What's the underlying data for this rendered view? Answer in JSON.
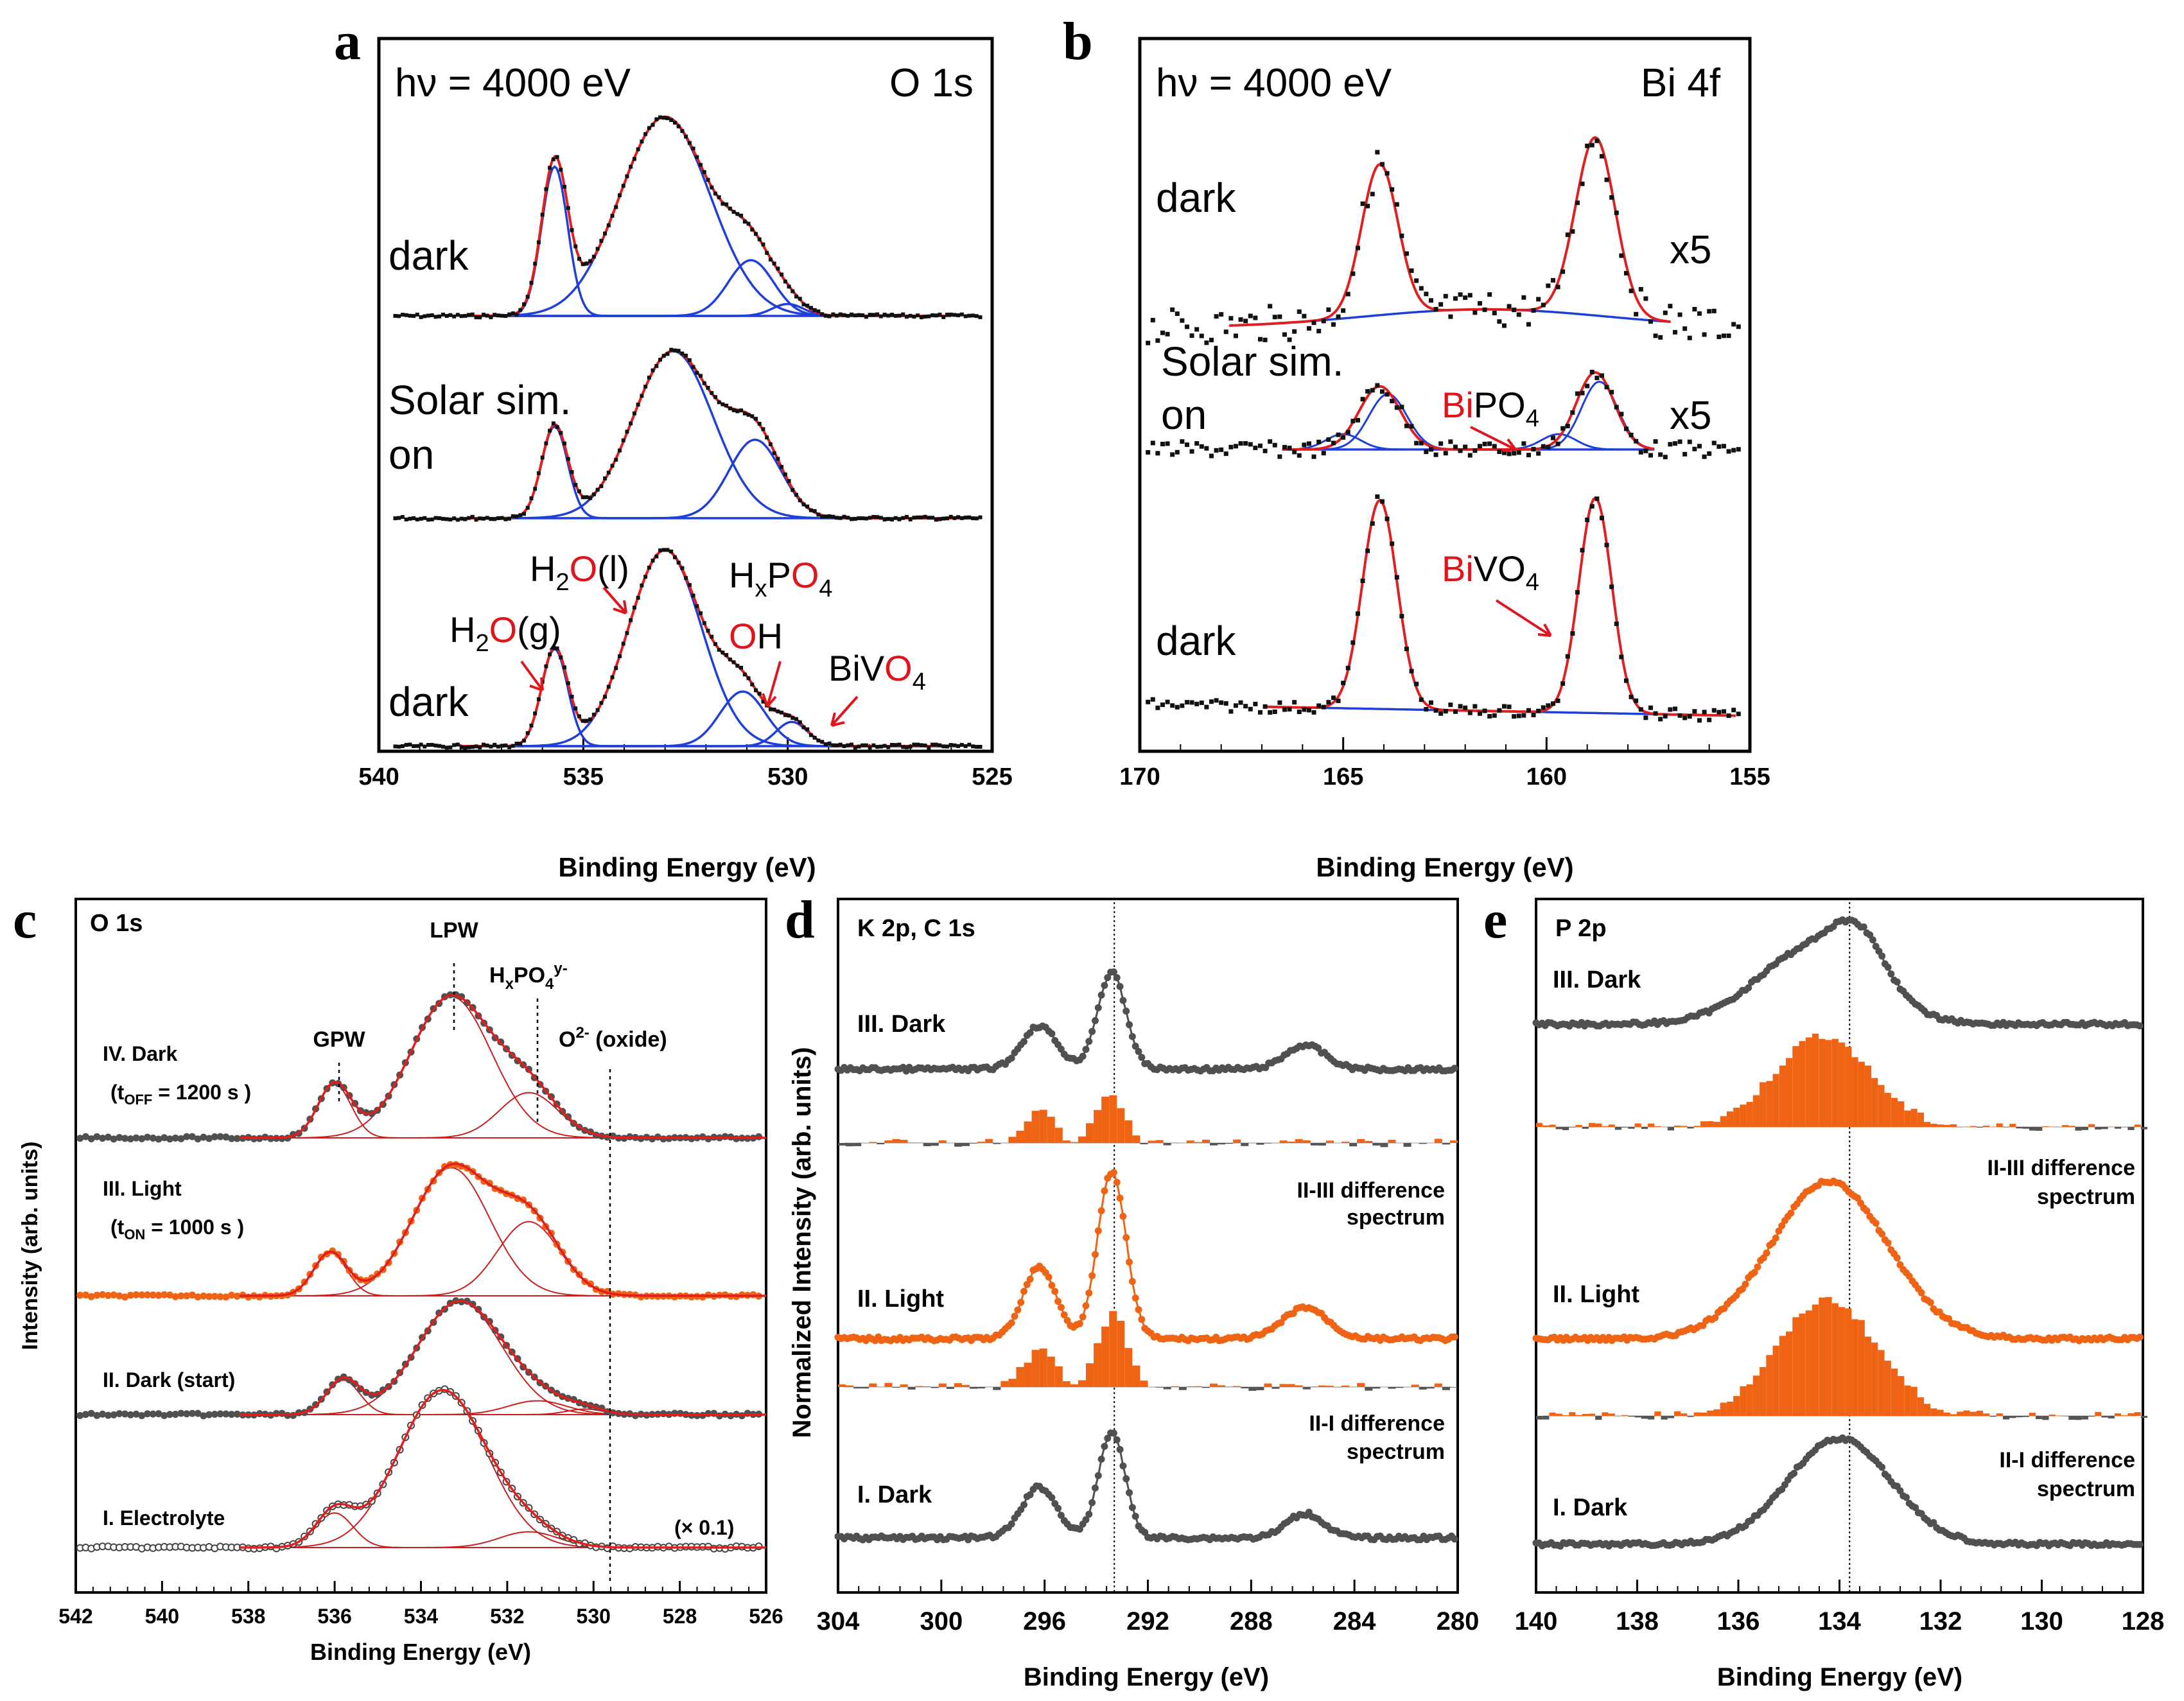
{
  "colors": {
    "data": "#111111",
    "fit": "#e02020",
    "comp": "#1f3fd8",
    "dark": "#505050",
    "orange": "#ef6414",
    "label_red": "#e0141c",
    "diff_gray": "#555555"
  },
  "panels": {
    "a": {
      "letter": "a",
      "hv": "hν = 4000 eV",
      "core": "O 1s",
      "xlabel": "Binding Energy (eV)",
      "xlim": [
        540,
        525
      ],
      "ticks": [
        540,
        535,
        530,
        525
      ],
      "traces": [
        {
          "label": "dark",
          "base": 0.0,
          "peaks": [
            [
              535.7,
              0.75,
              0.75
            ],
            [
              533.0,
              1.0,
              2.6
            ],
            [
              530.9,
              0.28,
              1.3
            ],
            [
              530.0,
              0.06,
              0.9
            ]
          ]
        },
        {
          "label": "Solar sim. on",
          "base": 0.0,
          "peaks": [
            [
              535.7,
              0.55,
              0.75
            ],
            [
              532.8,
              1.0,
              2.3
            ],
            [
              530.8,
              0.47,
              1.5
            ]
          ]
        },
        {
          "label": "dark",
          "base": 0.0,
          "peaks": [
            [
              535.7,
              0.48,
              0.75
            ],
            [
              533.0,
              0.97,
              2.1
            ],
            [
              531.1,
              0.27,
              1.3
            ],
            [
              529.9,
              0.12,
              0.9
            ]
          ]
        }
      ],
      "annotations": {
        "h2o_g": {
          "p": "H",
          "s": "2",
          "r": "O",
          "t": "(g)"
        },
        "h2o_l": {
          "p": "H",
          "s": "2",
          "r": "O",
          "t": "(l)"
        },
        "hxpo4": {
          "p": "H",
          "s": "x",
          "m": "P",
          "r": "O",
          "s2": "4"
        },
        "oh": {
          "r": "O",
          "t": "H"
        },
        "bivo4": {
          "p": "BiV",
          "r": "O",
          "s": "4"
        }
      }
    },
    "b": {
      "letter": "b",
      "hv": "hν = 4000 eV",
      "core": "Bi 4f",
      "xlabel": "Binding Energy (eV)",
      "xlim": [
        170,
        155
      ],
      "ticks": [
        170,
        165,
        160,
        155
      ],
      "traces": [
        {
          "label": "dark",
          "scale": "x5"
        },
        {
          "label": "Solar sim. on",
          "scale": "x5"
        },
        {
          "label": "dark",
          "scale": ""
        }
      ],
      "annotations": {
        "bipo4": {
          "r": "Bi",
          "p": "PO",
          "s": "4"
        },
        "bivo4": {
          "r": "Bi",
          "p": "VO",
          "s": "4"
        }
      }
    },
    "c": {
      "letter": "c",
      "core": "O 1s",
      "ylabel": "Intensity (arb. units)",
      "xlabel": "Binding Energy (eV)",
      "xlim": [
        542,
        526
      ],
      "ticks": [
        542,
        540,
        538,
        536,
        534,
        532,
        530,
        528,
        526
      ],
      "peaks_labels": {
        "gpw": "GPW",
        "lpw": "LPW",
        "hxpo4": "HxPO4y-",
        "oxide": "O2- (oxide)"
      },
      "traces": [
        {
          "label": "IV. Dark",
          "time": "(tOFF = 1200 s )",
          "peaks": [
            [
              536.0,
              0.38,
              0.9
            ],
            [
              533.3,
              1.0,
              2.2
            ],
            [
              531.5,
              0.32,
              1.6
            ]
          ]
        },
        {
          "label": "III. Light",
          "time": "(tON = 1000 s )",
          "peaks": [
            [
              536.1,
              0.32,
              0.9
            ],
            [
              533.3,
              0.95,
              2.1
            ],
            [
              531.5,
              0.55,
              1.7
            ]
          ]
        },
        {
          "label": "II. Dark (start)",
          "peaks": [
            [
              535.8,
              0.25,
              0.9
            ],
            [
              533.1,
              0.82,
              2.3
            ],
            [
              531.3,
              0.1,
              1.6
            ],
            [
              530.2,
              0.04,
              1.0
            ]
          ]
        },
        {
          "label": "I. Electrolyte",
          "scale": "(× 0.1)",
          "peaks": [
            [
              536.0,
              0.22,
              1.0
            ],
            [
              533.5,
              1.0,
              2.4
            ],
            [
              531.5,
              0.1,
              1.6
            ]
          ]
        }
      ]
    },
    "d": {
      "letter": "d",
      "core": "K 2p, C 1s",
      "ylabel": "Normalized Intensity (arb. units)",
      "xlabel": "Binding Energy (eV)",
      "xlim": [
        304,
        280
      ],
      "ticks": [
        304,
        300,
        296,
        292,
        288,
        284,
        280
      ],
      "ref_line": 293.3,
      "labels": [
        "III. Dark",
        "II-III difference",
        "spectrum",
        "II. Light",
        "II-I difference",
        "spectrum",
        "I. Dark"
      ]
    },
    "e": {
      "letter": "e",
      "core": "P 2p",
      "xlabel": "Binding Energy (eV)",
      "xlim": [
        140,
        128
      ],
      "ticks": [
        140,
        138,
        136,
        134,
        132,
        130,
        128
      ],
      "ref_line": 133.8,
      "labels": [
        "III. Dark",
        "II-III difference",
        "spectrum",
        "II. Light",
        "II-I difference",
        "spectrum",
        "I. Dark"
      ]
    }
  },
  "chart_data": [
    {
      "type": "line",
      "title": "a: O 1s, hν = 4000 eV",
      "xlabel": "Binding Energy (eV)",
      "ylabel": "",
      "xlim": [
        540,
        525
      ],
      "series": [
        {
          "name": "dark (top)",
          "peaks_eV": [
            535.7,
            533.0,
            530.9
          ]
        },
        {
          "name": "Solar sim. on",
          "peaks_eV": [
            535.7,
            532.8,
            530.8
          ]
        },
        {
          "name": "dark (bottom)",
          "peaks_eV": [
            535.7,
            533.0,
            531.1,
            529.9
          ]
        }
      ]
    },
    {
      "type": "line",
      "title": "b: Bi 4f, hν = 4000 eV",
      "xlabel": "Binding Energy (eV)",
      "ylabel": "",
      "xlim": [
        170,
        155
      ],
      "series": [
        {
          "name": "dark x5",
          "peaks_eV": [
            164.1,
            158.8
          ]
        },
        {
          "name": "Solar sim. on x5",
          "peaks_eV": [
            164.1,
            158.8
          ]
        },
        {
          "name": "dark",
          "peaks_eV": [
            164.1,
            158.8
          ]
        }
      ]
    },
    {
      "type": "line",
      "title": "c: O 1s",
      "xlabel": "Binding Energy (eV)",
      "ylabel": "Intensity (arb. units)",
      "xlim": [
        542,
        526
      ],
      "series": [
        {
          "name": "IV. Dark",
          "peaks_eV": [
            536.0,
            533.3,
            531.5
          ]
        },
        {
          "name": "III. Light",
          "peaks_eV": [
            536.1,
            533.3,
            531.5
          ]
        },
        {
          "name": "II. Dark (start)",
          "peaks_eV": [
            535.8,
            533.1,
            531.3
          ]
        },
        {
          "name": "I. Electrolyte",
          "peaks_eV": [
            536.0,
            533.5,
            531.5
          ]
        }
      ]
    },
    {
      "type": "line",
      "title": "d: K 2p, C 1s",
      "xlabel": "Binding Energy (eV)",
      "ylabel": "Normalized Intensity (arb. units)",
      "xlim": [
        304,
        280
      ],
      "series": [
        {
          "name": "III. Dark",
          "peaks_eV": [
            296.2,
            293.4,
            285.9
          ]
        },
        {
          "name": "II. Light",
          "peaks_eV": [
            296.2,
            293.4,
            285.9
          ]
        },
        {
          "name": "I. Dark",
          "peaks_eV": [
            296.2,
            293.4,
            285.9
          ]
        }
      ]
    },
    {
      "type": "line",
      "title": "e: P 2p",
      "xlabel": "Binding Energy (eV)",
      "ylabel": "",
      "xlim": [
        140,
        128
      ],
      "series": [
        {
          "name": "III. Dark",
          "peaks_eV": [
            134.5,
            133.6
          ]
        },
        {
          "name": "II. Light",
          "peaks_eV": [
            134.2
          ]
        },
        {
          "name": "I. Dark",
          "peaks_eV": [
            134.0
          ]
        }
      ]
    }
  ]
}
